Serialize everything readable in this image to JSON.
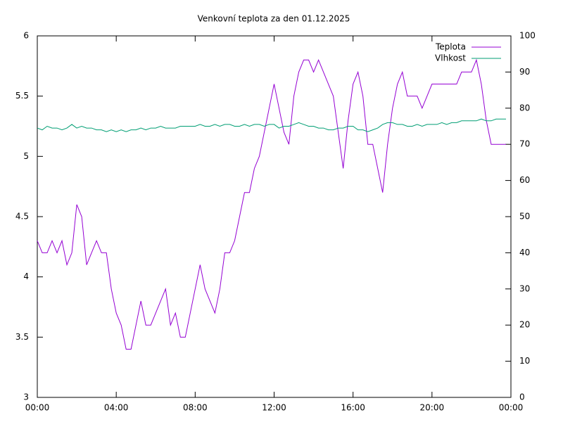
{
  "chart_data": {
    "type": "line",
    "title": "Venkovní teplota za den 01.12.2025",
    "x": [
      0,
      0.25,
      0.5,
      0.75,
      1,
      1.25,
      1.5,
      1.75,
      2,
      2.25,
      2.5,
      2.75,
      3,
      3.25,
      3.5,
      3.75,
      4,
      4.25,
      4.5,
      4.75,
      5,
      5.25,
      5.5,
      5.75,
      6,
      6.25,
      6.5,
      6.75,
      7,
      7.25,
      7.5,
      7.75,
      8,
      8.25,
      8.5,
      8.75,
      9,
      9.25,
      9.5,
      9.75,
      10,
      10.25,
      10.5,
      10.75,
      11,
      11.25,
      11.5,
      11.75,
      12,
      12.25,
      12.5,
      12.75,
      13,
      13.25,
      13.5,
      13.75,
      14,
      14.25,
      14.5,
      14.75,
      15,
      15.25,
      15.5,
      15.75,
      16,
      16.25,
      16.5,
      16.75,
      17,
      17.25,
      17.5,
      17.75,
      18,
      18.25,
      18.5,
      18.75,
      19,
      19.25,
      19.5,
      19.75,
      20,
      20.25,
      20.5,
      20.75,
      21,
      21.25,
      21.5,
      21.75,
      22,
      22.25,
      22.5,
      22.75,
      23,
      23.25,
      23.5,
      23.75
    ],
    "series": [
      {
        "name": "Teplota",
        "color": "#9400d3",
        "axis": "y",
        "values": [
          4.3,
          4.2,
          4.2,
          4.3,
          4.2,
          4.3,
          4.1,
          4.2,
          4.6,
          4.5,
          4.1,
          4.2,
          4.3,
          4.2,
          4.2,
          3.9,
          3.7,
          3.6,
          3.4,
          3.4,
          3.6,
          3.8,
          3.6,
          3.6,
          3.7,
          3.8,
          3.9,
          3.6,
          3.7,
          3.5,
          3.5,
          3.7,
          3.9,
          4.1,
          3.9,
          3.8,
          3.7,
          3.9,
          4.2,
          4.2,
          4.3,
          4.5,
          4.7,
          4.7,
          4.9,
          5.0,
          5.2,
          5.4,
          5.6,
          5.4,
          5.2,
          5.1,
          5.5,
          5.7,
          5.8,
          5.8,
          5.7,
          5.8,
          5.7,
          5.6,
          5.5,
          5.2,
          4.9,
          5.3,
          5.6,
          5.7,
          5.5,
          5.1,
          5.1,
          4.9,
          4.7,
          5.1,
          5.4,
          5.6,
          5.7,
          5.5,
          5.5,
          5.5,
          5.4,
          5.5,
          5.6,
          5.6,
          5.6,
          5.6,
          5.6,
          5.6,
          5.7,
          5.7,
          5.7,
          5.8,
          5.6,
          5.3,
          5.1,
          5.1,
          5.1,
          5.1
        ]
      },
      {
        "name": "Vlhkost",
        "color": "#009e73",
        "axis": "y2",
        "values": [
          74.5,
          74,
          75,
          74.5,
          74.5,
          74,
          74.5,
          75.5,
          74.5,
          75,
          74.5,
          74.5,
          74,
          74,
          73.5,
          74,
          73.5,
          74,
          73.5,
          74,
          74,
          74.5,
          74,
          74.5,
          74.5,
          75,
          74.5,
          74.5,
          74.5,
          75,
          75,
          75,
          75,
          75.5,
          75,
          75,
          75.5,
          75,
          75.5,
          75.5,
          75,
          75,
          75.5,
          75,
          75.5,
          75.5,
          75,
          75.5,
          75.5,
          74.5,
          75,
          75,
          75.5,
          76,
          75.5,
          75,
          75,
          74.5,
          74.5,
          74,
          74,
          74.5,
          74.5,
          75,
          75,
          74,
          74,
          73.5,
          74,
          74.5,
          75.5,
          76,
          76,
          75.5,
          75.5,
          75,
          75,
          75.5,
          75,
          75.5,
          75.5,
          75.5,
          76,
          75.5,
          76,
          76,
          76.5,
          76.5,
          76.5,
          76.5,
          77,
          76.5,
          76.5,
          77,
          77,
          77
        ]
      }
    ],
    "xlim": [
      0,
      24
    ],
    "xticks": [
      {
        "value": 0,
        "label": "00:00"
      },
      {
        "value": 4,
        "label": "04:00"
      },
      {
        "value": 8,
        "label": "08:00"
      },
      {
        "value": 12,
        "label": "12:00"
      },
      {
        "value": 16,
        "label": "16:00"
      },
      {
        "value": 20,
        "label": "20:00"
      },
      {
        "value": 24,
        "label": "00:00"
      }
    ],
    "ylim": [
      3,
      6
    ],
    "yticks": [
      3,
      3.5,
      4,
      4.5,
      5,
      5.5,
      6
    ],
    "y2lim": [
      0,
      100
    ],
    "y2ticks": [
      0,
      10,
      20,
      30,
      40,
      50,
      60,
      70,
      80,
      90,
      100
    ],
    "legend": "top-right"
  }
}
